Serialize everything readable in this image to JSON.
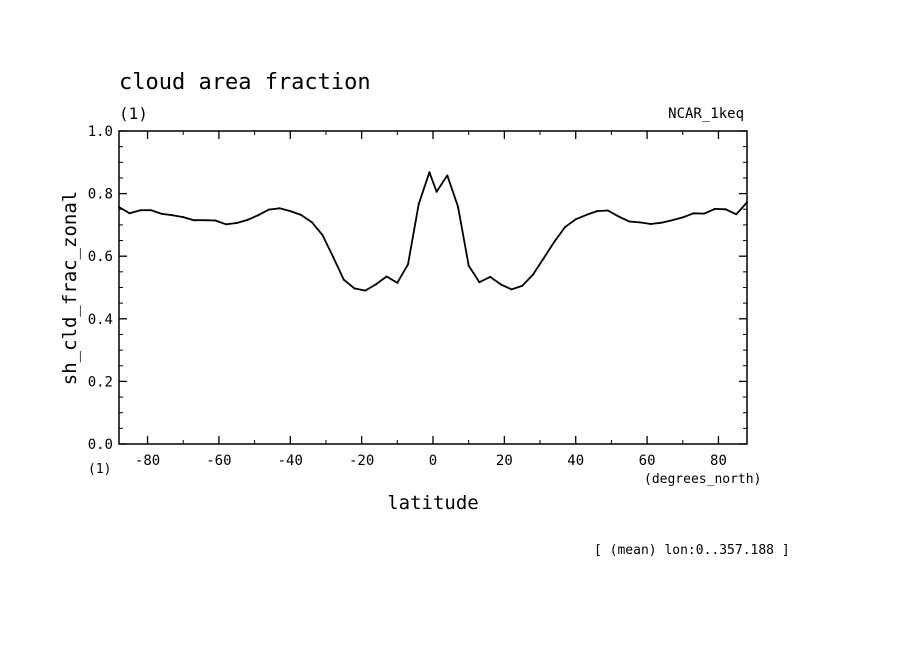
{
  "chart_data": {
    "type": "line",
    "title": "cloud area fraction",
    "units": "(1)",
    "units_x_corner": "(1)",
    "dataset": "NCAR_1keq",
    "ylabel": "sh_cld_frac_zonal",
    "xlabel": "latitude",
    "x_units": "(degrees_north)",
    "footnote": "[ (mean) lon:0..357.188 ]",
    "xlim": [
      -88,
      88
    ],
    "ylim": [
      0,
      1
    ],
    "x_ticks": [
      -80,
      -60,
      -40,
      -20,
      0,
      20,
      40,
      60,
      80
    ],
    "x_tick_labels": [
      "-80",
      "-60",
      "-40",
      "-20",
      "0",
      "20",
      "40",
      "60",
      "80"
    ],
    "y_ticks": [
      0,
      0.2,
      0.4,
      0.6,
      0.8,
      1.0
    ],
    "y_tick_labels": [
      "0.0",
      "0.2",
      "0.4",
      "0.6",
      "0.8",
      "1.0"
    ],
    "grid": false,
    "series": [
      {
        "x": [
          -88,
          -85,
          -82,
          -79,
          -76,
          -73,
          -70,
          -67,
          -64,
          -61,
          -58,
          -55,
          -52,
          -49,
          -46,
          -43,
          -40,
          -37,
          -34,
          -31,
          -28,
          -25,
          -22,
          -19,
          -16,
          -13,
          -10,
          -7,
          -4,
          -1,
          1,
          4,
          7,
          10,
          13,
          16,
          19,
          22,
          25,
          28,
          31,
          34,
          37,
          40,
          43,
          46,
          49,
          52,
          55,
          58,
          61,
          64,
          67,
          70,
          73,
          76,
          79,
          82,
          85,
          88
        ],
        "y": [
          0.757,
          0.737,
          0.747,
          0.747,
          0.735,
          0.731,
          0.725,
          0.715,
          0.715,
          0.714,
          0.702,
          0.706,
          0.716,
          0.731,
          0.749,
          0.753,
          0.744,
          0.732,
          0.709,
          0.668,
          0.598,
          0.525,
          0.497,
          0.49,
          0.51,
          0.535,
          0.515,
          0.574,
          0.766,
          0.868,
          0.806,
          0.858,
          0.758,
          0.57,
          0.517,
          0.534,
          0.51,
          0.494,
          0.505,
          0.541,
          0.593,
          0.646,
          0.693,
          0.718,
          0.732,
          0.744,
          0.746,
          0.727,
          0.711,
          0.708,
          0.703,
          0.707,
          0.715,
          0.724,
          0.737,
          0.736,
          0.751,
          0.75,
          0.734,
          0.772
        ]
      }
    ]
  }
}
